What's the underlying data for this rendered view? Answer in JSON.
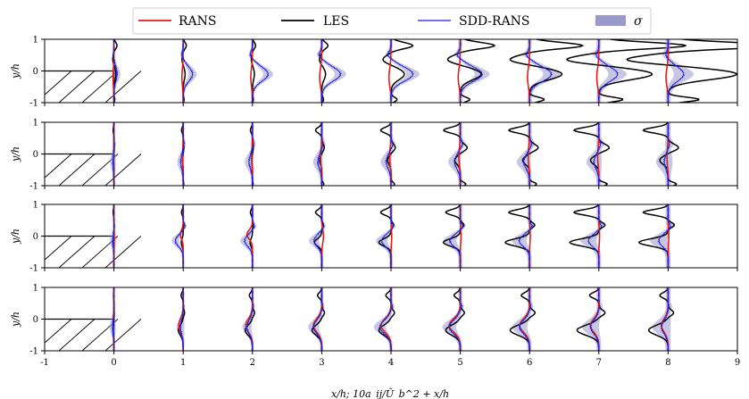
{
  "chart_data": {
    "type": "line",
    "layout": "4 vertically stacked panels sharing the x axis",
    "xlabel": "x/h;   10a_ij/Ū_b^2 + x/h",
    "ylabel": "y/h",
    "xlim": [
      -1,
      9
    ],
    "ylim": [
      -1,
      1
    ],
    "x_ticks": [
      "-1",
      "0",
      "1",
      "2",
      "3",
      "4",
      "5",
      "6",
      "7",
      "8",
      "9"
    ],
    "y_ticks": [
      "-1",
      "0",
      "1"
    ],
    "legend": {
      "placement": "top-center",
      "entries": [
        {
          "label": "RANS",
          "color": "#e41a1c",
          "kind": "line"
        },
        {
          "label": "LES",
          "color": "#000000",
          "kind": "line"
        },
        {
          "label": "SDD-RANS",
          "color": "#1a1adf",
          "kind": "line"
        },
        {
          "label": "σ",
          "color": "#9999cc",
          "kind": "patch"
        }
      ]
    },
    "step_geometry": {
      "x": [
        -1,
        0
      ],
      "y_top": 0,
      "y_bottom": -1
    },
    "stations_x": [
      0,
      1,
      2,
      3,
      4,
      5,
      6,
      7,
      8
    ],
    "panels": [
      {
        "name": "panel-1",
        "les_amp": [
          0.05,
          0.05,
          0.05,
          0.1,
          0.35,
          0.55,
          0.85,
          1.4,
          1.8
        ],
        "rans_amp": [
          0.02,
          0.03,
          0.04,
          0.05,
          0.05,
          0.05,
          0.05,
          0.05,
          0.05
        ],
        "sdd_amp": [
          0.05,
          0.15,
          0.25,
          0.3,
          0.35,
          0.35,
          0.35,
          0.3,
          0.25
        ]
      },
      {
        "name": "panel-2",
        "les_amp": [
          0.02,
          0.04,
          0.05,
          0.15,
          0.25,
          0.4,
          0.5,
          0.6,
          0.6
        ],
        "rans_amp": [
          0.01,
          0.02,
          0.03,
          0.04,
          0.05,
          0.05,
          0.05,
          0.04,
          0.04
        ],
        "sdd_amp": [
          0.02,
          0.05,
          0.07,
          0.08,
          0.1,
          0.12,
          0.12,
          0.1,
          0.08
        ]
      },
      {
        "name": "panel-3",
        "les_amp": [
          0.02,
          0.04,
          0.05,
          0.15,
          0.25,
          0.35,
          0.5,
          0.6,
          0.6
        ],
        "rans_amp": [
          0.01,
          0.05,
          0.1,
          0.05,
          0.02,
          0.02,
          0.02,
          0.02,
          0.02
        ],
        "sdd_amp": [
          0.02,
          0.15,
          0.15,
          0.15,
          0.18,
          0.2,
          0.2,
          0.2,
          0.18
        ]
      },
      {
        "name": "panel-4",
        "les_amp": [
          0.02,
          0.1,
          0.15,
          0.2,
          0.25,
          0.3,
          0.4,
          0.45,
          0.4
        ],
        "rans_amp": [
          0.02,
          0.08,
          0.12,
          0.15,
          0.18,
          0.2,
          0.18,
          0.15,
          0.12
        ],
        "sdd_amp": [
          0.02,
          0.05,
          0.1,
          0.15,
          0.2,
          0.2,
          0.18,
          0.15,
          0.12
        ]
      }
    ]
  }
}
